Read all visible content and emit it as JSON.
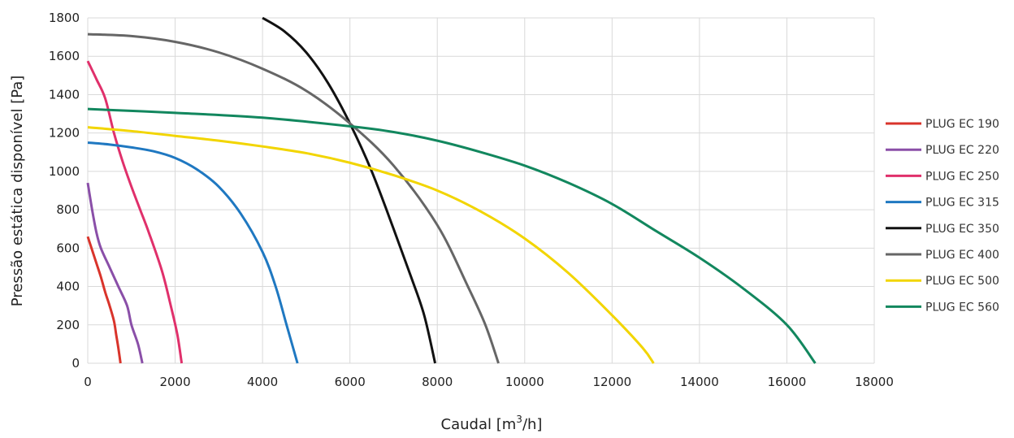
{
  "chart_data": {
    "type": "line",
    "title": "",
    "xlabel": "Caudal [m",
    "xlabel_sup": "3",
    "xlabel_tail": "/h]",
    "ylabel": "Pressão estática disponível [Pa]",
    "xlim": [
      0,
      18000
    ],
    "ylim": [
      0,
      1800
    ],
    "xticks": [
      0,
      2000,
      4000,
      6000,
      8000,
      10000,
      12000,
      14000,
      16000,
      18000
    ],
    "yticks": [
      0,
      200,
      400,
      600,
      800,
      1000,
      1200,
      1400,
      1600,
      1800
    ],
    "grid": true,
    "legend_position": "right",
    "series": [
      {
        "name": "PLUG EC 190",
        "color": "#d9342b",
        "points": [
          [
            0,
            660
          ],
          [
            100,
            590
          ],
          [
            200,
            520
          ],
          [
            300,
            450
          ],
          [
            400,
            370
          ],
          [
            500,
            300
          ],
          [
            600,
            220
          ],
          [
            650,
            150
          ],
          [
            700,
            80
          ],
          [
            750,
            0
          ]
        ]
      },
      {
        "name": "PLUG EC 220",
        "color": "#8a4fa8",
        "points": [
          [
            0,
            940
          ],
          [
            100,
            800
          ],
          [
            200,
            680
          ],
          [
            300,
            600
          ],
          [
            500,
            500
          ],
          [
            700,
            400
          ],
          [
            900,
            300
          ],
          [
            1000,
            200
          ],
          [
            1150,
            100
          ],
          [
            1250,
            0
          ]
        ]
      },
      {
        "name": "PLUG EC 250",
        "color": "#e0306b",
        "points": [
          [
            0,
            1575
          ],
          [
            200,
            1480
          ],
          [
            400,
            1380
          ],
          [
            600,
            1200
          ],
          [
            800,
            1050
          ],
          [
            1000,
            920
          ],
          [
            1200,
            800
          ],
          [
            1400,
            680
          ],
          [
            1700,
            480
          ],
          [
            1900,
            300
          ],
          [
            2050,
            150
          ],
          [
            2150,
            0
          ]
        ]
      },
      {
        "name": "PLUG EC 315",
        "color": "#1f78c1",
        "points": [
          [
            0,
            1150
          ],
          [
            500,
            1140
          ],
          [
            1000,
            1125
          ],
          [
            1500,
            1105
          ],
          [
            2000,
            1070
          ],
          [
            2500,
            1010
          ],
          [
            3000,
            920
          ],
          [
            3500,
            780
          ],
          [
            4000,
            580
          ],
          [
            4300,
            400
          ],
          [
            4550,
            200
          ],
          [
            4800,
            0
          ]
        ]
      },
      {
        "name": "PLUG EC 350",
        "color": "#111111",
        "points": [
          [
            4000,
            1800
          ],
          [
            4500,
            1730
          ],
          [
            5000,
            1620
          ],
          [
            5500,
            1460
          ],
          [
            6000,
            1250
          ],
          [
            6500,
            1000
          ],
          [
            7000,
            700
          ],
          [
            7400,
            450
          ],
          [
            7700,
            250
          ],
          [
            7950,
            0
          ]
        ]
      },
      {
        "name": "PLUG EC 400",
        "color": "#666666",
        "points": [
          [
            0,
            1715
          ],
          [
            1000,
            1705
          ],
          [
            2000,
            1675
          ],
          [
            3000,
            1620
          ],
          [
            4000,
            1535
          ],
          [
            5000,
            1420
          ],
          [
            6000,
            1250
          ],
          [
            7000,
            1030
          ],
          [
            8000,
            720
          ],
          [
            8700,
            400
          ],
          [
            9100,
            200
          ],
          [
            9400,
            0
          ]
        ]
      },
      {
        "name": "PLUG EC 500",
        "color": "#f2d500",
        "points": [
          [
            0,
            1230
          ],
          [
            1000,
            1210
          ],
          [
            2000,
            1185
          ],
          [
            3000,
            1160
          ],
          [
            4000,
            1130
          ],
          [
            5000,
            1095
          ],
          [
            6000,
            1045
          ],
          [
            7000,
            980
          ],
          [
            8000,
            900
          ],
          [
            9000,
            790
          ],
          [
            10000,
            650
          ],
          [
            11000,
            470
          ],
          [
            12000,
            250
          ],
          [
            12700,
            80
          ],
          [
            12950,
            0
          ]
        ]
      },
      {
        "name": "PLUG EC 560",
        "color": "#12875e",
        "points": [
          [
            0,
            1325
          ],
          [
            2000,
            1305
          ],
          [
            4000,
            1280
          ],
          [
            6000,
            1235
          ],
          [
            7000,
            1205
          ],
          [
            8000,
            1160
          ],
          [
            9000,
            1100
          ],
          [
            10000,
            1030
          ],
          [
            11000,
            940
          ],
          [
            12000,
            830
          ],
          [
            13000,
            690
          ],
          [
            14000,
            550
          ],
          [
            15000,
            390
          ],
          [
            16000,
            200
          ],
          [
            16650,
            0
          ]
        ]
      }
    ]
  }
}
